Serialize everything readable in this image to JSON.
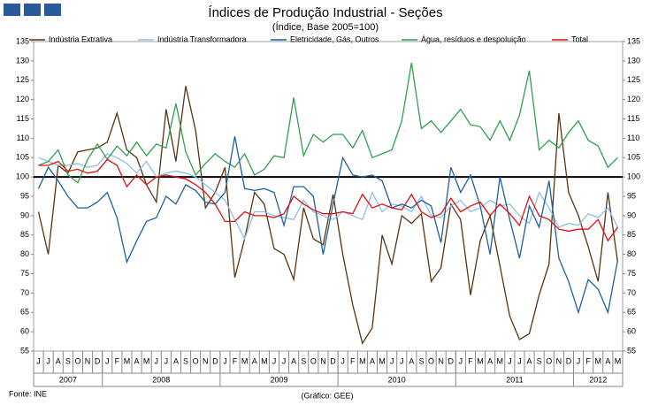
{
  "chart_data": {
    "type": "line",
    "title": "Índices de Produção Industrial - Seções",
    "subtitle": "(Índice, Base 2005=100)",
    "source": "Fonte: INE",
    "credit": "(Gráfico: GEE)",
    "categories": [
      "J",
      "J",
      "A",
      "S",
      "O",
      "N",
      "D",
      "J",
      "F",
      "M",
      "A",
      "M",
      "J",
      "J",
      "A",
      "S",
      "O",
      "N",
      "D",
      "J",
      "F",
      "M",
      "A",
      "M",
      "J",
      "J",
      "A",
      "S",
      "O",
      "N",
      "D",
      "J",
      "F",
      "M",
      "A",
      "M",
      "J",
      "J",
      "A",
      "S",
      "O",
      "N",
      "D",
      "J",
      "F",
      "M",
      "A",
      "M",
      "J",
      "J",
      "A",
      "S",
      "O",
      "N",
      "D",
      "J",
      "F",
      "M",
      "A",
      "M"
    ],
    "years": [
      "2007",
      "2008",
      "2009",
      "2010",
      "2011",
      "2012"
    ],
    "ylim": [
      55,
      135
    ],
    "yticks": [
      55,
      60,
      65,
      70,
      75,
      80,
      85,
      90,
      95,
      100,
      105,
      110,
      115,
      120,
      125,
      130,
      135
    ],
    "reference_line": 100,
    "series": [
      {
        "name": "Indústria Extrativa",
        "color": "#5a3311",
        "values": [
          91,
          80,
          103,
          101,
          106.5,
          107,
          107.5,
          109,
          116.5,
          107,
          105,
          98,
          93.5,
          117.5,
          104,
          123.5,
          112,
          92,
          96,
          102.5,
          74,
          84,
          96,
          93,
          81.5,
          80,
          73.5,
          92,
          84,
          82.5,
          95.5,
          80,
          67,
          57,
          61,
          85,
          77.5,
          90,
          88,
          90.5,
          73,
          76.5,
          93,
          89,
          69.5,
          83.5,
          90,
          77,
          64,
          58,
          59.5,
          69.5,
          77.5,
          116.5,
          96,
          90,
          82,
          73,
          96,
          78
        ]
      },
      {
        "name": "Indústria Transformadora",
        "color": "#8fbfe0",
        "values": [
          105,
          104,
          103,
          103,
          103.5,
          102.5,
          103,
          106,
          105,
          103.5,
          101,
          104,
          100,
          101,
          101.5,
          101,
          100,
          98,
          96,
          94,
          89,
          84,
          91,
          91,
          90,
          89.5,
          89,
          94,
          91,
          90,
          89,
          91,
          90,
          89,
          96,
          91,
          93,
          92.5,
          91,
          95,
          90,
          89.5,
          92.5,
          94,
          91,
          92,
          94,
          92.5,
          93,
          90,
          88,
          96,
          92,
          87,
          88,
          87.5,
          90.5,
          89.5,
          92,
          87
        ]
      },
      {
        "name": "Eletricidade, Gás, Outros",
        "color": "#1f5f9f",
        "values": [
          97,
          102.5,
          99,
          95,
          92,
          92,
          93.5,
          96,
          89.5,
          78,
          83.5,
          88.5,
          89.5,
          95,
          93,
          98,
          96.5,
          93.5,
          93,
          96,
          110.5,
          97,
          96.5,
          97,
          96,
          87.5,
          97.5,
          97.5,
          95,
          80,
          93,
          105,
          100.5,
          100,
          100.5,
          99,
          92,
          93,
          92,
          94,
          92.5,
          83,
          102.5,
          96,
          100.5,
          92.5,
          80,
          100,
          89,
          79,
          92.5,
          87,
          99,
          79,
          73,
          65,
          73.5,
          71,
          65,
          78.5
        ]
      },
      {
        "name": "Água, resíduos e despoluição",
        "color": "#2ea04f",
        "values": [
          103,
          104,
          107,
          100.5,
          98.5,
          104.5,
          108.5,
          104.5,
          108,
          105.5,
          109,
          105.5,
          108.5,
          107.5,
          119,
          106.5,
          100.5,
          103.5,
          106,
          104,
          102.5,
          106,
          100.5,
          102,
          105.5,
          105,
          120.5,
          105.5,
          111,
          109,
          111,
          111,
          107.5,
          112,
          105,
          106,
          107,
          114.5,
          129.5,
          112.5,
          114.5,
          111.5,
          114.5,
          117.5,
          113.5,
          113,
          109.5,
          114.5,
          109.5,
          116,
          127.5,
          107,
          109.5,
          107.5,
          111.5,
          114.5,
          109.5,
          108,
          102.5,
          105
        ]
      },
      {
        "name": "Total",
        "color": "#e01010",
        "values": [
          103,
          103,
          104,
          101.5,
          102,
          101,
          101.5,
          104.5,
          103,
          97.5,
          100.5,
          98,
          100,
          100.5,
          100,
          99.5,
          98,
          96,
          93,
          88.5,
          88.5,
          91,
          90,
          90,
          89.5,
          90.5,
          95,
          93,
          91.5,
          90.5,
          90.5,
          91,
          90.5,
          95.5,
          92,
          93,
          92,
          91.5,
          95.5,
          91,
          89.5,
          90.5,
          94.5,
          91,
          92.5,
          93.5,
          90,
          93,
          90.5,
          87.5,
          95,
          90,
          89,
          86.5,
          86,
          86.5,
          86.5,
          89,
          83.5,
          87
        ]
      }
    ]
  }
}
